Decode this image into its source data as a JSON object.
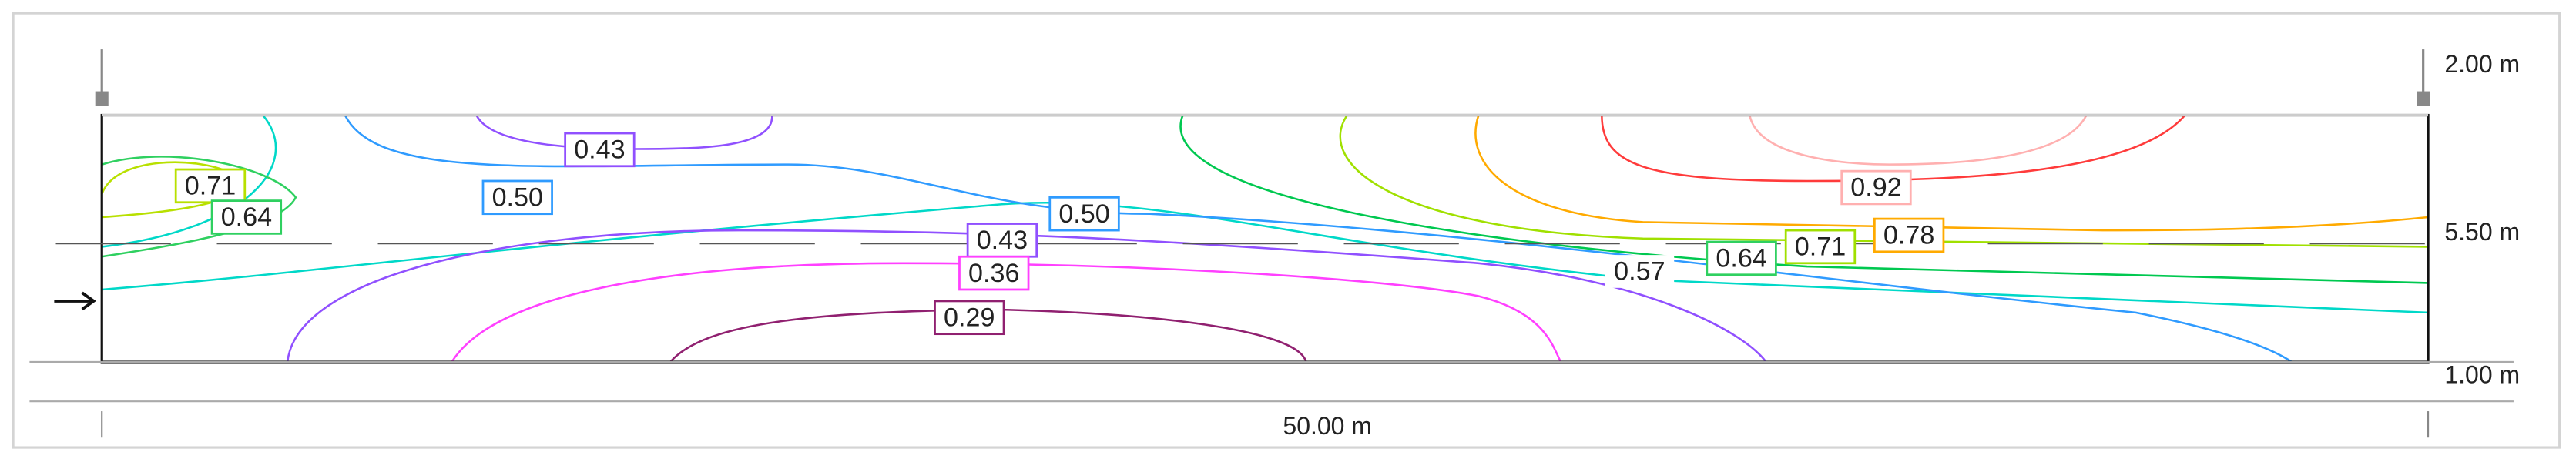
{
  "dimensions": {
    "top_level": "2.00 m",
    "water_level": "5.50 m",
    "bottom_level": "1.00 m",
    "length": "50.00 m"
  },
  "contour_labels": [
    "0.43",
    "0.71",
    "0.64",
    "0.50",
    "0.50",
    "0.43",
    "0.36",
    "0.29",
    "0.92",
    "0.57",
    "0.64",
    "0.71",
    "0.78"
  ]
}
